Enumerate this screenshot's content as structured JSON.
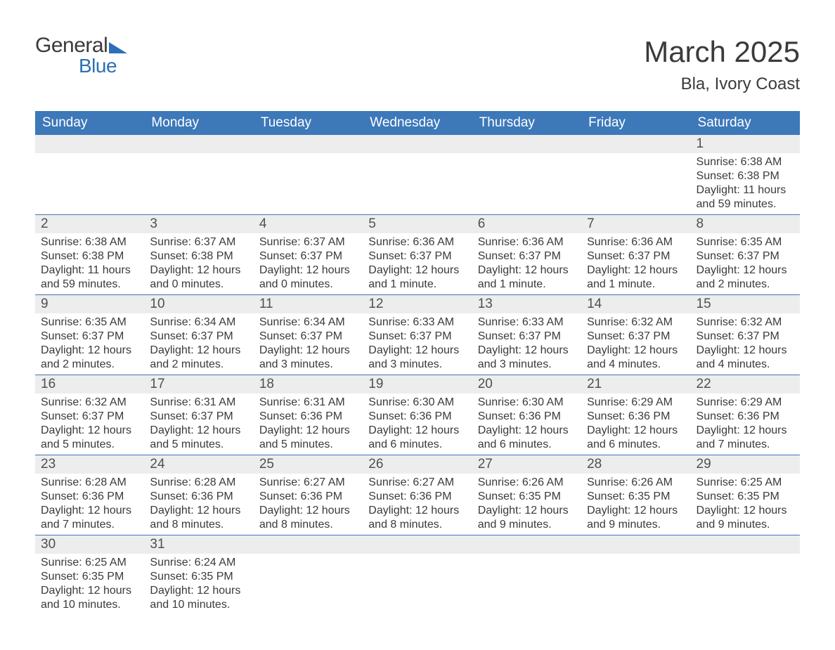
{
  "logo": {
    "word1": "General",
    "word2": "Blue"
  },
  "title": "March 2025",
  "location": "Bla, Ivory Coast",
  "colors": {
    "header_bg": "#3d78b9",
    "header_text": "#ffffff",
    "daynum_bg": "#ededed",
    "text": "#3a3a3a",
    "accent": "#2d6fb6"
  },
  "day_headers": [
    "Sunday",
    "Monday",
    "Tuesday",
    "Wednesday",
    "Thursday",
    "Friday",
    "Saturday"
  ],
  "weeks": [
    [
      {
        "n": "",
        "sr": "",
        "ss": "",
        "dl": ""
      },
      {
        "n": "",
        "sr": "",
        "ss": "",
        "dl": ""
      },
      {
        "n": "",
        "sr": "",
        "ss": "",
        "dl": ""
      },
      {
        "n": "",
        "sr": "",
        "ss": "",
        "dl": ""
      },
      {
        "n": "",
        "sr": "",
        "ss": "",
        "dl": ""
      },
      {
        "n": "",
        "sr": "",
        "ss": "",
        "dl": ""
      },
      {
        "n": "1",
        "sr": "Sunrise: 6:38 AM",
        "ss": "Sunset: 6:38 PM",
        "dl": "Daylight: 11 hours and 59 minutes."
      }
    ],
    [
      {
        "n": "2",
        "sr": "Sunrise: 6:38 AM",
        "ss": "Sunset: 6:38 PM",
        "dl": "Daylight: 11 hours and 59 minutes."
      },
      {
        "n": "3",
        "sr": "Sunrise: 6:37 AM",
        "ss": "Sunset: 6:38 PM",
        "dl": "Daylight: 12 hours and 0 minutes."
      },
      {
        "n": "4",
        "sr": "Sunrise: 6:37 AM",
        "ss": "Sunset: 6:37 PM",
        "dl": "Daylight: 12 hours and 0 minutes."
      },
      {
        "n": "5",
        "sr": "Sunrise: 6:36 AM",
        "ss": "Sunset: 6:37 PM",
        "dl": "Daylight: 12 hours and 1 minute."
      },
      {
        "n": "6",
        "sr": "Sunrise: 6:36 AM",
        "ss": "Sunset: 6:37 PM",
        "dl": "Daylight: 12 hours and 1 minute."
      },
      {
        "n": "7",
        "sr": "Sunrise: 6:36 AM",
        "ss": "Sunset: 6:37 PM",
        "dl": "Daylight: 12 hours and 1 minute."
      },
      {
        "n": "8",
        "sr": "Sunrise: 6:35 AM",
        "ss": "Sunset: 6:37 PM",
        "dl": "Daylight: 12 hours and 2 minutes."
      }
    ],
    [
      {
        "n": "9",
        "sr": "Sunrise: 6:35 AM",
        "ss": "Sunset: 6:37 PM",
        "dl": "Daylight: 12 hours and 2 minutes."
      },
      {
        "n": "10",
        "sr": "Sunrise: 6:34 AM",
        "ss": "Sunset: 6:37 PM",
        "dl": "Daylight: 12 hours and 2 minutes."
      },
      {
        "n": "11",
        "sr": "Sunrise: 6:34 AM",
        "ss": "Sunset: 6:37 PM",
        "dl": "Daylight: 12 hours and 3 minutes."
      },
      {
        "n": "12",
        "sr": "Sunrise: 6:33 AM",
        "ss": "Sunset: 6:37 PM",
        "dl": "Daylight: 12 hours and 3 minutes."
      },
      {
        "n": "13",
        "sr": "Sunrise: 6:33 AM",
        "ss": "Sunset: 6:37 PM",
        "dl": "Daylight: 12 hours and 3 minutes."
      },
      {
        "n": "14",
        "sr": "Sunrise: 6:32 AM",
        "ss": "Sunset: 6:37 PM",
        "dl": "Daylight: 12 hours and 4 minutes."
      },
      {
        "n": "15",
        "sr": "Sunrise: 6:32 AM",
        "ss": "Sunset: 6:37 PM",
        "dl": "Daylight: 12 hours and 4 minutes."
      }
    ],
    [
      {
        "n": "16",
        "sr": "Sunrise: 6:32 AM",
        "ss": "Sunset: 6:37 PM",
        "dl": "Daylight: 12 hours and 5 minutes."
      },
      {
        "n": "17",
        "sr": "Sunrise: 6:31 AM",
        "ss": "Sunset: 6:37 PM",
        "dl": "Daylight: 12 hours and 5 minutes."
      },
      {
        "n": "18",
        "sr": "Sunrise: 6:31 AM",
        "ss": "Sunset: 6:36 PM",
        "dl": "Daylight: 12 hours and 5 minutes."
      },
      {
        "n": "19",
        "sr": "Sunrise: 6:30 AM",
        "ss": "Sunset: 6:36 PM",
        "dl": "Daylight: 12 hours and 6 minutes."
      },
      {
        "n": "20",
        "sr": "Sunrise: 6:30 AM",
        "ss": "Sunset: 6:36 PM",
        "dl": "Daylight: 12 hours and 6 minutes."
      },
      {
        "n": "21",
        "sr": "Sunrise: 6:29 AM",
        "ss": "Sunset: 6:36 PM",
        "dl": "Daylight: 12 hours and 6 minutes."
      },
      {
        "n": "22",
        "sr": "Sunrise: 6:29 AM",
        "ss": "Sunset: 6:36 PM",
        "dl": "Daylight: 12 hours and 7 minutes."
      }
    ],
    [
      {
        "n": "23",
        "sr": "Sunrise: 6:28 AM",
        "ss": "Sunset: 6:36 PM",
        "dl": "Daylight: 12 hours and 7 minutes."
      },
      {
        "n": "24",
        "sr": "Sunrise: 6:28 AM",
        "ss": "Sunset: 6:36 PM",
        "dl": "Daylight: 12 hours and 8 minutes."
      },
      {
        "n": "25",
        "sr": "Sunrise: 6:27 AM",
        "ss": "Sunset: 6:36 PM",
        "dl": "Daylight: 12 hours and 8 minutes."
      },
      {
        "n": "26",
        "sr": "Sunrise: 6:27 AM",
        "ss": "Sunset: 6:36 PM",
        "dl": "Daylight: 12 hours and 8 minutes."
      },
      {
        "n": "27",
        "sr": "Sunrise: 6:26 AM",
        "ss": "Sunset: 6:35 PM",
        "dl": "Daylight: 12 hours and 9 minutes."
      },
      {
        "n": "28",
        "sr": "Sunrise: 6:26 AM",
        "ss": "Sunset: 6:35 PM",
        "dl": "Daylight: 12 hours and 9 minutes."
      },
      {
        "n": "29",
        "sr": "Sunrise: 6:25 AM",
        "ss": "Sunset: 6:35 PM",
        "dl": "Daylight: 12 hours and 9 minutes."
      }
    ],
    [
      {
        "n": "30",
        "sr": "Sunrise: 6:25 AM",
        "ss": "Sunset: 6:35 PM",
        "dl": "Daylight: 12 hours and 10 minutes."
      },
      {
        "n": "31",
        "sr": "Sunrise: 6:24 AM",
        "ss": "Sunset: 6:35 PM",
        "dl": "Daylight: 12 hours and 10 minutes."
      },
      {
        "n": "",
        "sr": "",
        "ss": "",
        "dl": ""
      },
      {
        "n": "",
        "sr": "",
        "ss": "",
        "dl": ""
      },
      {
        "n": "",
        "sr": "",
        "ss": "",
        "dl": ""
      },
      {
        "n": "",
        "sr": "",
        "ss": "",
        "dl": ""
      },
      {
        "n": "",
        "sr": "",
        "ss": "",
        "dl": ""
      }
    ]
  ]
}
